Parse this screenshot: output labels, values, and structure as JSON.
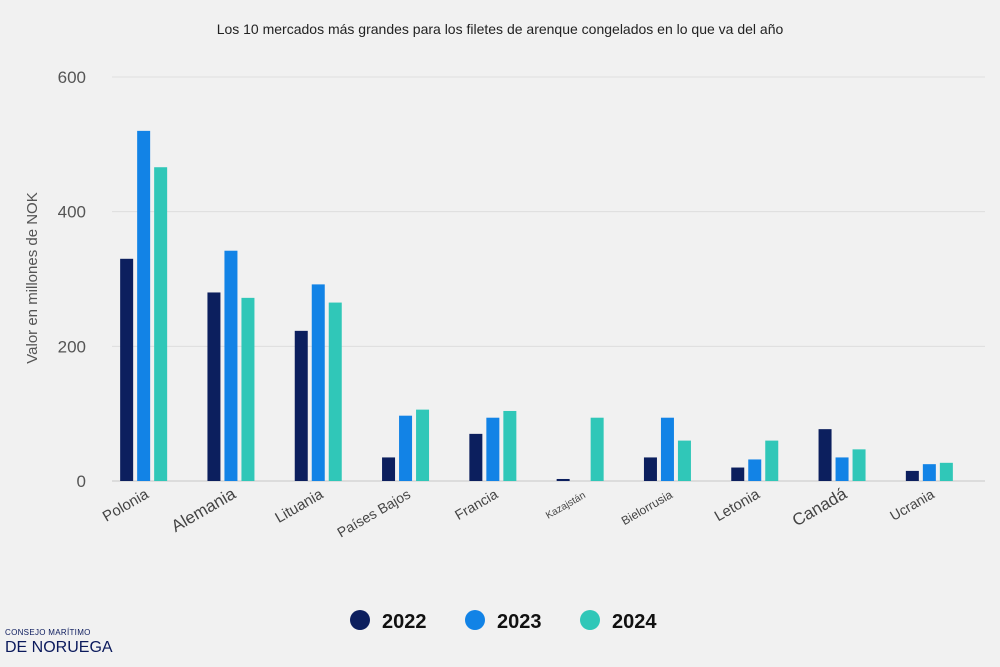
{
  "chart_data": {
    "type": "bar",
    "title": "Los 10 mercados más grandes para los filetes de arenque congelados en lo que va del año",
    "ylabel": "Valor en millones de NOK",
    "ylim": [
      0,
      600
    ],
    "yticks": [
      0,
      200,
      400,
      600
    ],
    "grid": true,
    "legend_position": "bottom-center",
    "categories": [
      "Polonia",
      "Alemania",
      "Lituania",
      "Países Bajos",
      "Francia",
      "Kazajstán",
      "Bielorrusia",
      "Letonia",
      "Canadá",
      "Ucrania"
    ],
    "series": [
      {
        "name": "2022",
        "color": "#0c1f5e",
        "values": [
          330,
          280,
          223,
          35,
          70,
          3,
          35,
          20,
          77,
          15
        ]
      },
      {
        "name": "2023",
        "color": "#1283e6",
        "values": [
          520,
          342,
          292,
          97,
          94,
          0,
          94,
          32,
          35,
          25
        ]
      },
      {
        "name": "2024",
        "color": "#30c7b8",
        "values": [
          466,
          272,
          265,
          106,
          104,
          94,
          60,
          60,
          47,
          27
        ]
      }
    ]
  },
  "brand": {
    "top": "CONSEJO MARÍTIMO",
    "bottom": "DE NORUEGA"
  }
}
